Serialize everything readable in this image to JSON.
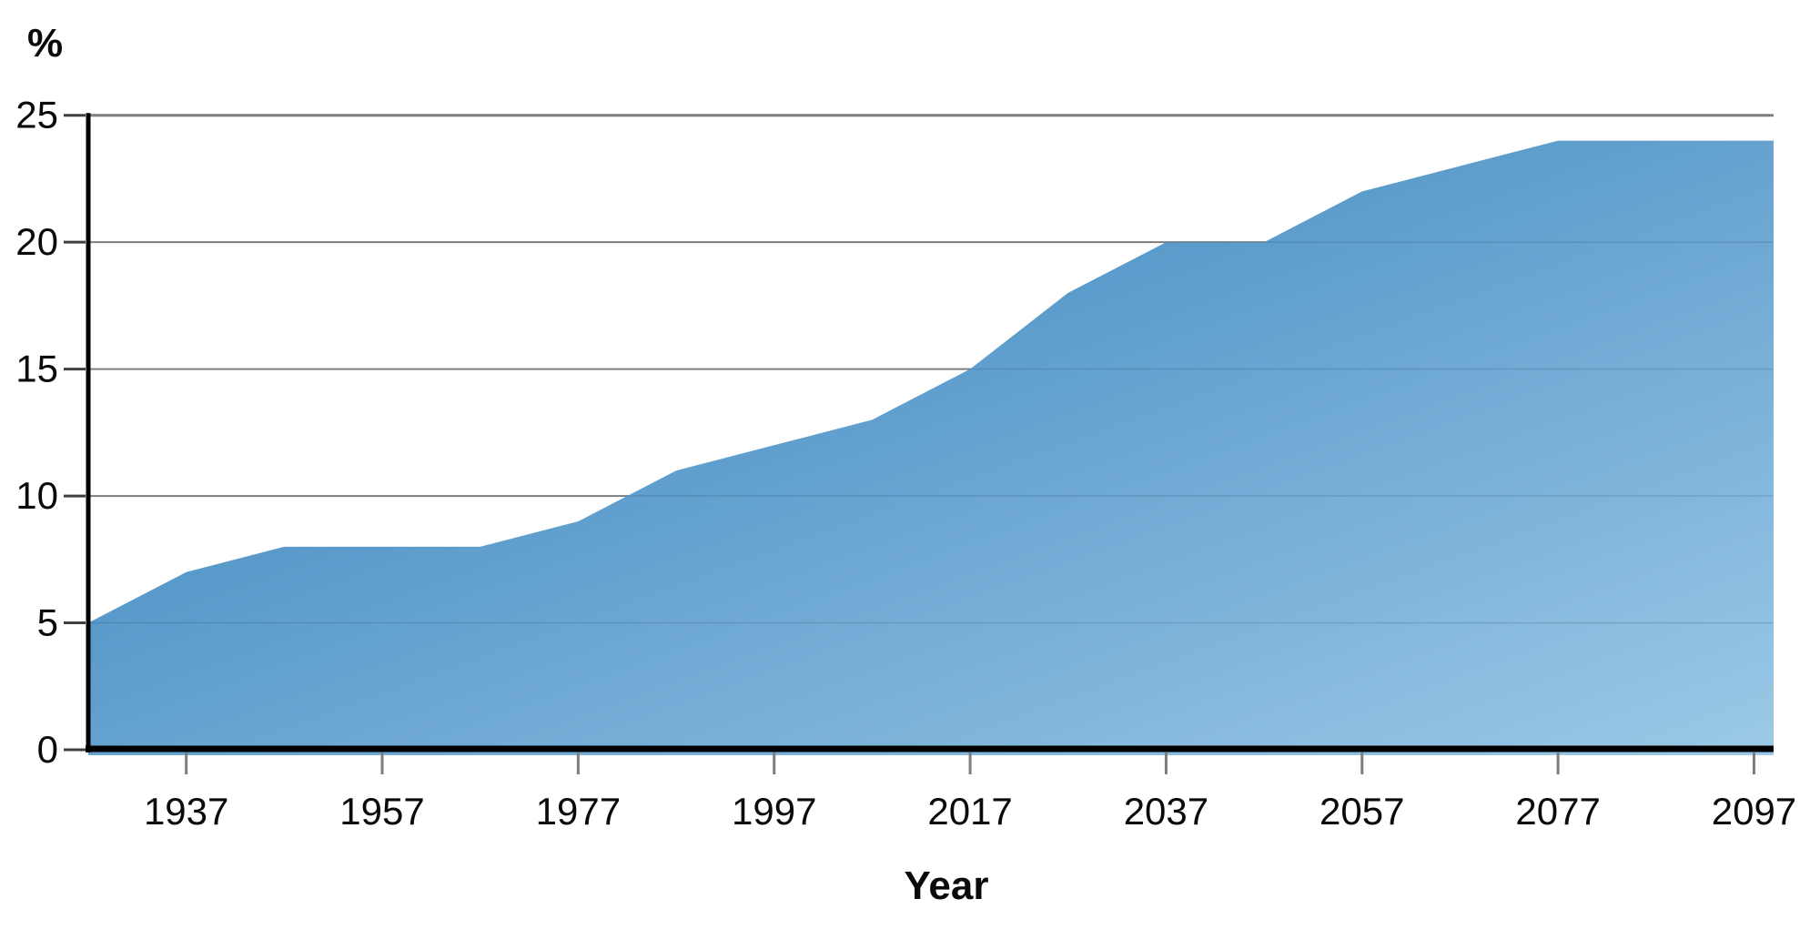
{
  "figure": {
    "background": "#ffffff"
  },
  "chart_data": {
    "type": "area",
    "title": "",
    "xlabel": "Year",
    "ylabel": "%",
    "x": [
      1927,
      1937,
      1947,
      1957,
      1967,
      1977,
      1987,
      1997,
      2007,
      2017,
      2027,
      2037,
      2047,
      2057,
      2067,
      2077,
      2087,
      2099
    ],
    "values": [
      5,
      7,
      8,
      8,
      8,
      9,
      11,
      12,
      13,
      15,
      18,
      20,
      20,
      22,
      23,
      24,
      24,
      24
    ],
    "x_ticks": [
      1937,
      1957,
      1977,
      1997,
      2017,
      2037,
      2057,
      2077,
      2097
    ],
    "y_ticks": [
      0,
      5,
      10,
      15,
      20,
      25
    ],
    "xlim": [
      1927,
      2099
    ],
    "ylim": [
      0,
      25
    ],
    "grid": "horizontal",
    "legend": "none",
    "colors": {
      "area_gradient_start": "#2e7cb8",
      "area_gradient_end": "#9cc9e7",
      "gridline": "#8a8a8a",
      "top_gridline": "#7d7d7d",
      "axis": "#000000",
      "y_tick_mark": "#3f3f3f",
      "x_tick_mark": "#7d7d7d",
      "text": "#0a0a0a"
    }
  }
}
